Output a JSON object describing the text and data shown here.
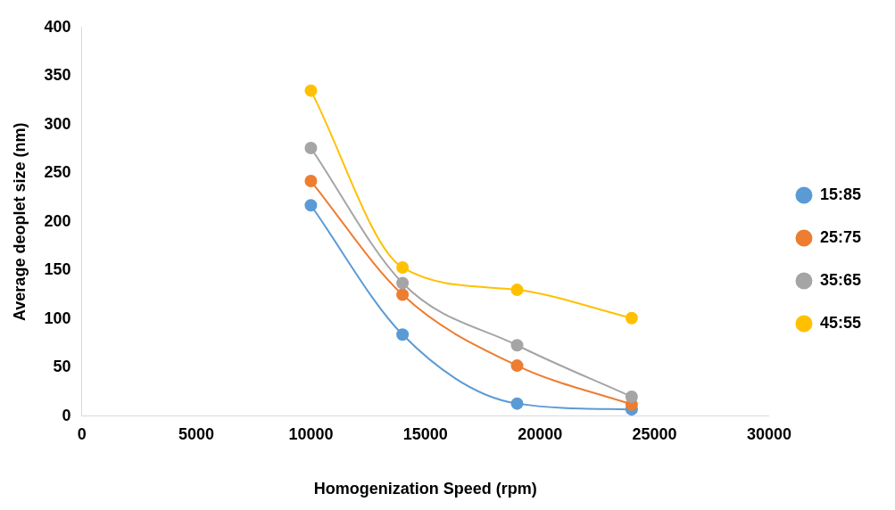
{
  "chart_data": {
    "type": "line",
    "xlabel": "Homogenization Speed (rpm)",
    "ylabel": "Average deoplet size (nm)",
    "x": [
      10000,
      14000,
      19000,
      24000
    ],
    "series": [
      {
        "name": "15:85",
        "color": "#5b9bd5",
        "values": [
          217,
          84,
          13,
          7
        ]
      },
      {
        "name": "25:75",
        "color": "#ed7d31",
        "values": [
          242,
          125,
          52,
          12
        ]
      },
      {
        "name": "35:65",
        "color": "#a5a5a5",
        "values": [
          276,
          137,
          73,
          20
        ]
      },
      {
        "name": "45:55",
        "color": "#ffc000",
        "values": [
          335,
          153,
          130,
          101
        ]
      }
    ],
    "xlim": [
      0,
      30000
    ],
    "xticks": [
      0,
      5000,
      10000,
      15000,
      20000,
      25000,
      30000
    ],
    "ylim": [
      0,
      400
    ],
    "yticks": [
      0,
      50,
      100,
      150,
      200,
      250,
      300,
      350,
      400
    ],
    "grid": false,
    "legend": "right",
    "marker": "circle",
    "line_style": "solid"
  }
}
